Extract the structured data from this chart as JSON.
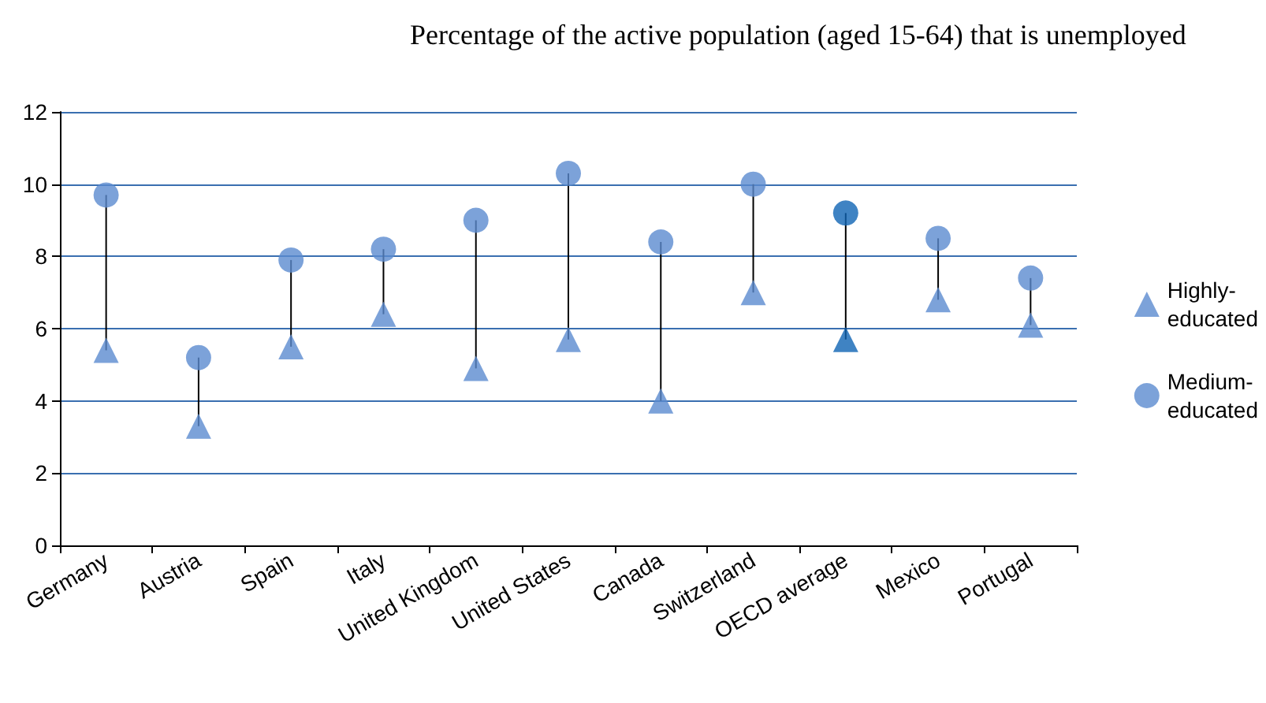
{
  "chart_data": {
    "type": "scatter",
    "title": "Percentage of the active population (aged 15-64) that is unemployed",
    "categories": [
      "Germany",
      "Austria",
      "Spain",
      "Italy",
      "United Kingdom",
      "United States",
      "Canada",
      "Switzerland",
      "OECD average",
      "Mexico",
      "Portugal"
    ],
    "series": [
      {
        "name": "Highly-educated",
        "marker": "triangle",
        "color": "#5b8bd0",
        "colors": [
          "#5b8bd0",
          "#5b8bd0",
          "#5b8bd0",
          "#5b8bd0",
          "#5b8bd0",
          "#5b8bd0",
          "#5b8bd0",
          "#5b8bd0",
          "#0f64b4",
          "#5b8bd0",
          "#5b8bd0"
        ],
        "values": [
          5.4,
          3.3,
          5.5,
          6.4,
          4.9,
          5.7,
          4.0,
          7.0,
          5.7,
          6.8,
          6.1
        ]
      },
      {
        "name": "Medium-educated",
        "marker": "circle",
        "color": "#5b8bd0",
        "colors": [
          "#5b8bd0",
          "#5b8bd0",
          "#5b8bd0",
          "#5b8bd0",
          "#5b8bd0",
          "#5b8bd0",
          "#5b8bd0",
          "#5b8bd0",
          "#0f64b4",
          "#5b8bd0",
          "#5b8bd0"
        ],
        "values": [
          9.7,
          5.2,
          7.9,
          8.2,
          9.0,
          10.3,
          8.4,
          10.0,
          9.2,
          8.5,
          7.4
        ]
      }
    ],
    "ylim": [
      0,
      12
    ],
    "yticks": [
      0,
      2,
      4,
      6,
      8,
      10,
      12
    ],
    "grid": "y",
    "legend": "right"
  }
}
